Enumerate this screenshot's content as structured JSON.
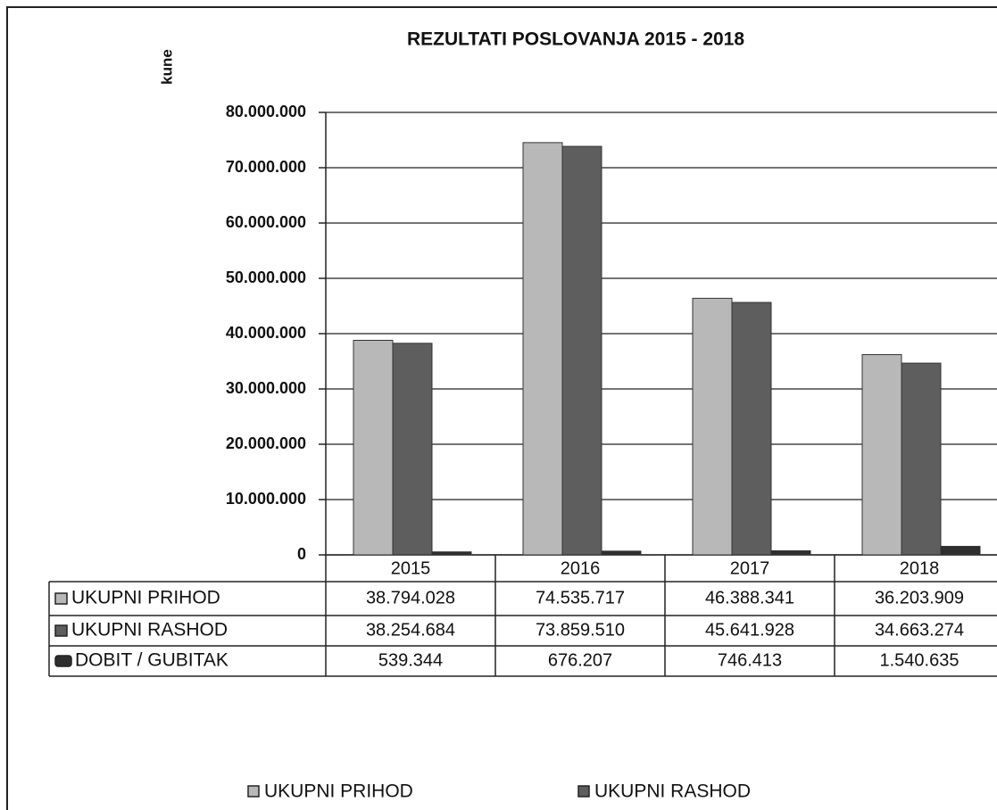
{
  "chart_data": {
    "type": "bar",
    "title": "REZULTATI POSLOVANJA 2015 - 2018",
    "y_label": "kune",
    "categories": [
      "2015",
      "2016",
      "2017",
      "2018"
    ],
    "series": [
      {
        "name": "UKUPNI PRIHOD",
        "color": "#b8b8b8",
        "values": [
          38794028,
          74535717,
          46388341,
          36203909
        ],
        "value_labels": [
          "38.794.028",
          "74.535.717",
          "46.388.341",
          "36.203.909"
        ]
      },
      {
        "name": "UKUPNI RASHOD",
        "color": "#5e5e5e",
        "values": [
          38254684,
          73859510,
          45641928,
          34663274
        ],
        "value_labels": [
          "38.254.684",
          "73.859.510",
          "45.641.928",
          "34.663.274"
        ]
      },
      {
        "name": "DOBIT / GUBITAK",
        "color": "#2e2e2e",
        "values": [
          539344,
          676207,
          746413,
          1540635
        ],
        "value_labels": [
          "539.344",
          "676.207",
          "746.413",
          "1.540.635"
        ]
      }
    ],
    "ylim": [
      0,
      80000000
    ],
    "yticks": [
      0,
      {
        "value": 10000000,
        "label": "10.000.000"
      },
      {
        "value": 20000000,
        "label": "20.000.000"
      },
      {
        "value": 30000000,
        "label": "30.000.000"
      },
      {
        "value": 40000000,
        "label": "40.000.000"
      },
      {
        "value": 50000000,
        "label": "50.000.000"
      },
      {
        "value": 60000000,
        "label": "60.000.000"
      },
      {
        "value": 70000000,
        "label": "70.000.000"
      },
      {
        "value": 80000000,
        "label": "80.000.000"
      }
    ],
    "grid": true,
    "legend": "bottom"
  }
}
